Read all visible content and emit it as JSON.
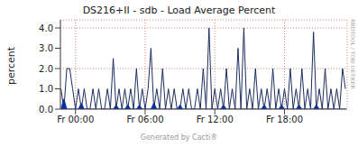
{
  "chart_data": {
    "type": "line",
    "title": "DS216+II - sdb - Load Average Percent",
    "ylabel": "percent",
    "annotations": [
      "Generated by Cacti®",
      "RRDTOOL / TOBI OETIKER"
    ],
    "x": [
      -1.25,
      -1,
      -0.75,
      -0.5,
      -0.25,
      0,
      0.25,
      0.5,
      0.75,
      1,
      1.25,
      1.5,
      1.75,
      2,
      2.25,
      2.5,
      2.75,
      3,
      3.25,
      3.5,
      3.75,
      4,
      4.25,
      4.5,
      4.75,
      5,
      5.25,
      5.5,
      5.75,
      6,
      6.25,
      6.5,
      6.75,
      7,
      7.25,
      7.5,
      7.75,
      8,
      8.25,
      8.5,
      8.75,
      9,
      9.25,
      9.5,
      9.75,
      10,
      10.25,
      10.5,
      10.75,
      11,
      11.25,
      11.5,
      11.75,
      12,
      12.25,
      12.5,
      12.75,
      13,
      13.25,
      13.5,
      13.75,
      14,
      14.25,
      14.5,
      14.75,
      15,
      15.25,
      15.5,
      15.75,
      16,
      16.25,
      16.5,
      16.75,
      17,
      17.25,
      17.5,
      17.75,
      18,
      18.25,
      18.5,
      18.75,
      19,
      19.25,
      19.5,
      19.75,
      20,
      20.25,
      20.5,
      20.75,
      21,
      21.25,
      21.5,
      21.75,
      22,
      22.25,
      22.5,
      22.75,
      23,
      23.25
    ],
    "series": [
      {
        "type": "area",
        "color": "#0033cc",
        "values": [
          0,
          0.5,
          0,
          0,
          0,
          0,
          0,
          0.3,
          0,
          0,
          0,
          0,
          0,
          0,
          0,
          0,
          0,
          0,
          0,
          0.2,
          0,
          0,
          0,
          0.2,
          0,
          0,
          0,
          0.2,
          0,
          0,
          0,
          0,
          0.3,
          0,
          0,
          0,
          0,
          0,
          0,
          0,
          0,
          0.2,
          0,
          0,
          0,
          0,
          0,
          0,
          0,
          0,
          0,
          0,
          0,
          0,
          0,
          0,
          0.2,
          0,
          0,
          0,
          0,
          0,
          0,
          0,
          0,
          0,
          0,
          0,
          0,
          0,
          0.2,
          0,
          0,
          0,
          0,
          0,
          0.2,
          0,
          0,
          0,
          0,
          0,
          0.2,
          0,
          0,
          0,
          0,
          0,
          0.2,
          0,
          0,
          0,
          0,
          0,
          0,
          0,
          0,
          0,
          0
        ]
      },
      {
        "type": "line",
        "color": "#1c2d5e",
        "values": [
          1,
          0,
          2,
          2,
          1,
          0,
          1,
          0,
          1,
          0,
          0,
          1,
          0,
          1,
          0,
          0,
          1,
          0,
          2.5,
          0,
          1,
          0,
          1,
          0,
          1,
          0,
          2,
          0,
          1,
          0,
          1,
          3,
          0,
          1,
          0,
          2,
          0,
          1,
          0,
          1,
          0,
          0,
          1,
          0,
          1,
          0,
          0,
          1,
          0,
          2,
          0,
          4,
          0,
          1,
          0,
          1,
          0,
          2,
          0,
          1,
          0,
          3,
          0,
          4,
          0,
          1,
          0,
          2,
          0,
          1,
          0,
          1,
          0,
          2,
          0,
          1,
          0,
          1,
          0,
          2,
          0,
          1,
          0,
          2,
          0,
          1,
          0,
          3.8,
          0,
          1,
          0,
          2,
          0,
          1,
          0,
          1,
          0,
          2,
          1
        ]
      }
    ],
    "xlim": [
      -1.3,
      23.4
    ],
    "xticks": [
      {
        "value": 0,
        "label": "Fr 00:00"
      },
      {
        "value": 6,
        "label": "Fr 06:00"
      },
      {
        "value": 12,
        "label": "Fr 12:00"
      },
      {
        "value": 18,
        "label": "Fr 18:00"
      }
    ],
    "ylim": [
      0,
      4.4
    ],
    "yticks": [
      {
        "value": 0,
        "label": "0.0"
      },
      {
        "value": 1,
        "label": "1.0"
      },
      {
        "value": 2,
        "label": "2.0"
      },
      {
        "value": 3,
        "label": "3.0"
      },
      {
        "value": 4,
        "label": "4.0"
      }
    ],
    "grid": true
  }
}
